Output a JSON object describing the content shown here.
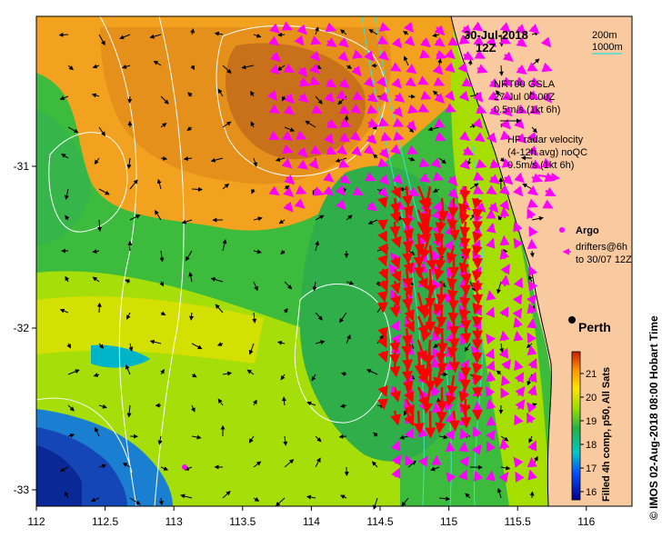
{
  "map": {
    "date": "30-Jul-2018",
    "time": "12Z",
    "contour_legend": [
      "200m",
      "1000m"
    ],
    "contour_legend_colors": [
      "#ffffff",
      "#40e0d0"
    ],
    "gsla_title": "NRT00 GSLA",
    "gsla_date": "27-Jul 00:00Z",
    "gsla_scale": "0.5m/s (1kt 6h)",
    "hf_title": "HF radar velocity",
    "hf_avg": "(4-12h avg) noQC",
    "hf_scale": "0.5m/s (1kt 6h)",
    "argo_label": "Argo",
    "drifters_line1": "drifters@6h",
    "drifters_line2": "to 30/07 12Z",
    "city": "Perth",
    "colorbar_label": "Filled 4h comp, p50, All Sats",
    "credit": "© IMOS 02-Aug-2018 08:00 Hobart Time",
    "colorbar_ticks": [
      "16",
      "17",
      "18",
      "19",
      "20",
      "21"
    ],
    "x_ticks": [
      "112",
      "112.5",
      "113",
      "113.5",
      "114",
      "114.5",
      "115",
      "115.5",
      "116"
    ],
    "y_ticks": [
      "-31",
      "-32",
      "-33"
    ],
    "colors": {
      "land": "#f9c9a0",
      "hf_vector": "#ff00ff",
      "radar_vector": "#ff0000",
      "contour_200m": "#ffffff",
      "contour_1000m": "#40e0d0"
    }
  }
}
